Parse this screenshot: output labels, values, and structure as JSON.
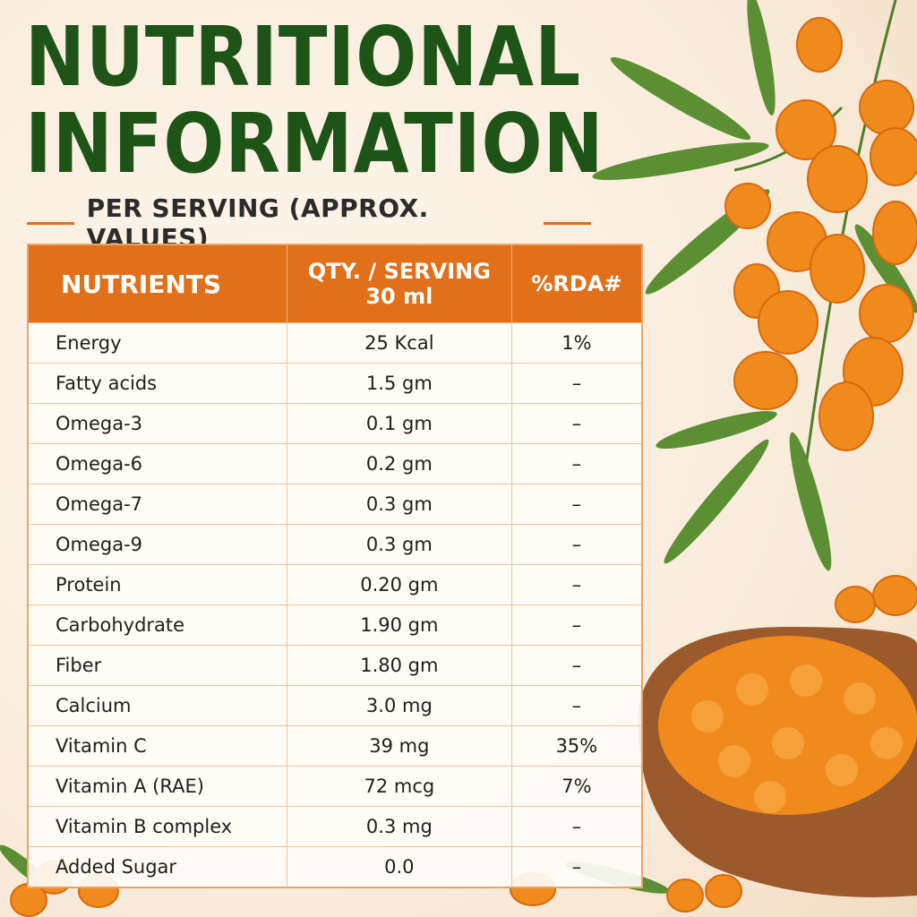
{
  "header": {
    "title_lines": [
      "NUTRITIONAL",
      "INFORMATION"
    ],
    "subtitle": "PER SERVING (APPROX. VALUES)"
  },
  "table": {
    "columns": [
      [
        "NUTRIENTS"
      ],
      [
        "QTY. / SERVING",
        "30 ml"
      ],
      [
        "%RDA#"
      ]
    ],
    "rows": [
      [
        "Energy",
        "25 Kcal",
        "1%"
      ],
      [
        "Fatty acids",
        "1.5 gm",
        "–"
      ],
      [
        "Omega-3",
        "0.1 gm",
        "–"
      ],
      [
        "Omega-6",
        "0.2 gm",
        "–"
      ],
      [
        "Omega-7",
        "0.3 gm",
        "–"
      ],
      [
        "Omega-9",
        "0.3 gm",
        "–"
      ],
      [
        "Protein",
        "0.20 gm",
        "–"
      ],
      [
        "Carbohydrate",
        "1.90 gm",
        "–"
      ],
      [
        "Fiber",
        "1.80 gm",
        "–"
      ],
      [
        "Calcium",
        "3.0 mg",
        "–"
      ],
      [
        "Vitamin C",
        "39 mg",
        "35%"
      ],
      [
        "Vitamin A (RAE)",
        "72 mcg",
        "7%"
      ],
      [
        "Vitamin B complex",
        "0.3 mg",
        "–"
      ],
      [
        "Added Sugar",
        "0.0",
        "–"
      ]
    ]
  }
}
